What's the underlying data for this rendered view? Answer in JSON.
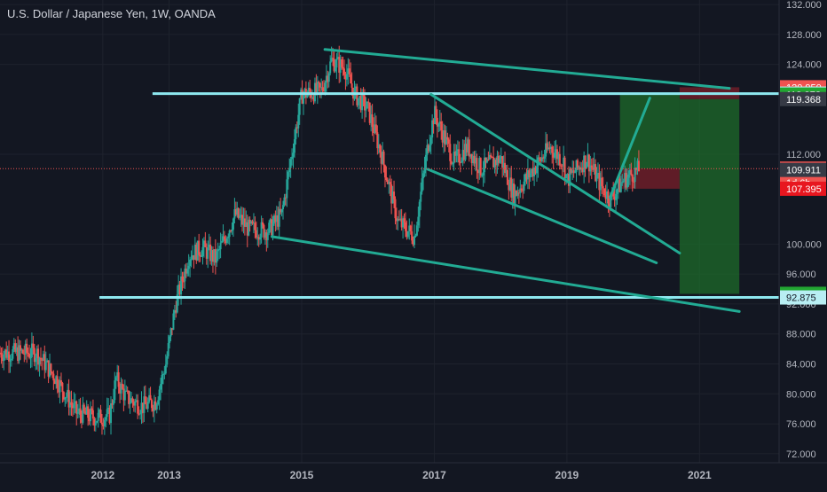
{
  "header": {
    "title": "U.S. Dollar / Japanese Yen, 1W, OANDA"
  },
  "colors": {
    "background": "#131722",
    "grid": "#1e222d",
    "axis_text": "#b2b5be",
    "up": "#26a69a",
    "down": "#ef5350",
    "trendline": "#22ab94",
    "level_line": "#8ee8f0",
    "current_price_line": "#ef5350",
    "target_zone": "#1e6b2a",
    "stop_zone": "#7a1f2a"
  },
  "chart_data": {
    "type": "candlestick",
    "title": "U.S. Dollar / Japanese Yen, 1W, OANDA",
    "xlabel": "",
    "ylabel": "",
    "ylim": [
      70.8,
      132.6
    ],
    "xlim": [
      2010.45,
      2022.2
    ],
    "grid": true,
    "x_ticks": [
      "2012",
      "2013",
      "2015",
      "2017",
      "2019",
      "2021"
    ],
    "y_ticks": [
      "72.000",
      "76.000",
      "80.000",
      "84.000",
      "88.000",
      "92.000",
      "96.000",
      "100.000",
      "112.000",
      "124.000",
      "128.000",
      "132.000"
    ],
    "series": [
      {
        "name": "",
        "trend": [
          [
            2011.0,
            85.5
          ],
          [
            2011.3,
            82.0
          ],
          [
            2011.6,
            77.5
          ],
          [
            2011.9,
            76.8
          ],
          [
            2012.1,
            77.0
          ],
          [
            2012.2,
            82.0
          ],
          [
            2012.35,
            79.5
          ],
          [
            2012.6,
            78.3
          ],
          [
            2012.8,
            79.0
          ],
          [
            2012.95,
            84.0
          ],
          [
            2013.1,
            92.0
          ],
          [
            2013.3,
            98.5
          ],
          [
            2013.5,
            99.5
          ],
          [
            2013.7,
            98.0
          ],
          [
            2014.0,
            104.0
          ],
          [
            2014.2,
            102.0
          ],
          [
            2014.5,
            101.8
          ],
          [
            2014.7,
            104.0
          ],
          [
            2014.85,
            112.0
          ],
          [
            2015.0,
            120.0
          ],
          [
            2015.3,
            120.5
          ],
          [
            2015.45,
            124.5
          ],
          [
            2015.65,
            123.5
          ],
          [
            2015.8,
            120.0
          ],
          [
            2016.0,
            118.0
          ],
          [
            2016.2,
            112.0
          ],
          [
            2016.45,
            103.0
          ],
          [
            2016.7,
            101.0
          ],
          [
            2016.9,
            113.0
          ],
          [
            2017.0,
            117.5
          ],
          [
            2017.3,
            111.0
          ],
          [
            2017.5,
            113.0
          ],
          [
            2017.7,
            110.0
          ],
          [
            2018.0,
            111.5
          ],
          [
            2018.2,
            106.5
          ],
          [
            2018.45,
            109.5
          ],
          [
            2018.75,
            113.0
          ],
          [
            2018.95,
            111.0
          ],
          [
            2019.0,
            108.5
          ],
          [
            2019.3,
            111.5
          ],
          [
            2019.5,
            108.0
          ],
          [
            2019.65,
            106.0
          ],
          [
            2019.85,
            108.5
          ],
          [
            2020.0,
            109.5
          ],
          [
            2020.1,
            110.0
          ]
        ]
      }
    ],
    "price_labels": [
      {
        "text": "120.950",
        "value": 120.95,
        "color": "#ef5350"
      },
      {
        "text": "120.099",
        "value": 120.099,
        "color": "#b8eef3"
      },
      {
        "text": "119.972",
        "value": 119.972,
        "color": "#22a632"
      },
      {
        "text": "119.368",
        "value": 119.368,
        "color": "#363a45"
      },
      {
        "text": "110.082",
        "value": 110.082,
        "color": "#ef5350"
      },
      {
        "text": "1d 6h",
        "value": 108.2,
        "color": "#ef5350"
      },
      {
        "text": "109.911",
        "value": 109.911,
        "color": "#363a45"
      },
      {
        "text": "107.395",
        "value": 107.395,
        "color": "#e8161f"
      },
      {
        "text": "93.361",
        "value": 93.361,
        "color": "#22a632"
      },
      {
        "text": "92.875",
        "value": 92.875,
        "color": "#b8eef3"
      }
    ],
    "horizontal_levels": [
      {
        "value": 120.099,
        "x_start": 2012.75
      },
      {
        "value": 92.875,
        "x_start": 2011.95
      }
    ],
    "trendlines": [
      {
        "from": [
          2015.35,
          126.0
        ],
        "to": [
          2021.45,
          120.8
        ]
      },
      {
        "from": [
          2014.55,
          101.0
        ],
        "to": [
          2021.6,
          91.0
        ]
      },
      {
        "from": [
          2016.95,
          120.0
        ],
        "to": [
          2020.7,
          98.8
        ]
      },
      {
        "from": [
          2016.9,
          110.0
        ],
        "to": [
          2020.35,
          97.5
        ]
      },
      {
        "from": [
          2019.65,
          106.2
        ],
        "to": [
          2020.25,
          119.5
        ]
      }
    ],
    "positions": [
      {
        "kind": "target",
        "x_from": 2019.8,
        "x_to": 2020.7,
        "y_low": 110.082,
        "y_high": 119.972
      },
      {
        "kind": "stop",
        "x_from": 2019.8,
        "x_to": 2020.7,
        "y_low": 107.395,
        "y_high": 110.082
      },
      {
        "kind": "target",
        "x_from": 2020.7,
        "x_to": 2021.6,
        "y_low": 93.361,
        "y_high": 119.368
      },
      {
        "kind": "stop",
        "x_from": 2020.7,
        "x_to": 2021.6,
        "y_low": 119.368,
        "y_high": 120.95
      }
    ],
    "current_price": 110.082
  }
}
